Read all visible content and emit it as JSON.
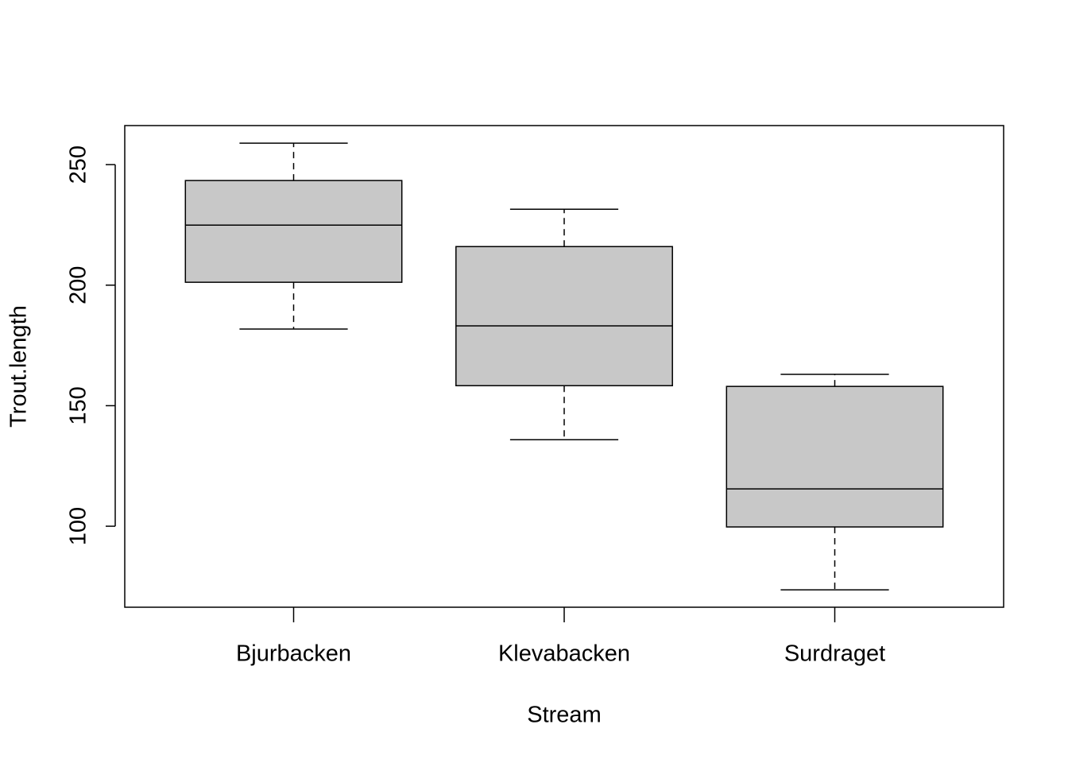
{
  "chart_data": {
    "type": "box",
    "categories": [
      "Bjurbacken",
      "Klevabacken",
      "Surdraget"
    ],
    "min": [
      181.8,
      135.9,
      73.6
    ],
    "q1": [
      201.2,
      158.3,
      99.7
    ],
    "median": [
      224.9,
      183.1,
      115.5
    ],
    "q3": [
      243.4,
      216,
      158
    ],
    "max": [
      258.9,
      231.5,
      163
    ],
    "color": "#c8c8c8",
    "xlabel": "Stream",
    "ylabel": "Trout.length",
    "ylim": [
      66.4,
      266.2
    ],
    "yticks": [
      100,
      150,
      200,
      250
    ]
  }
}
